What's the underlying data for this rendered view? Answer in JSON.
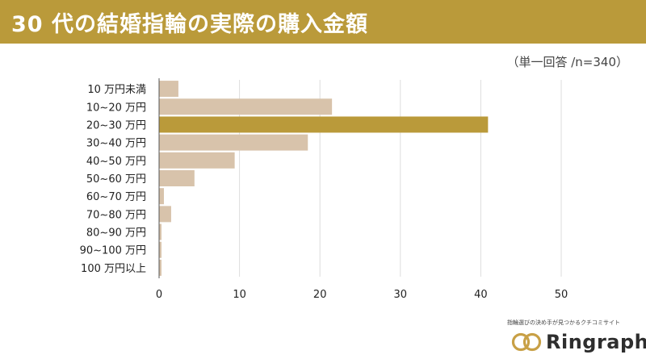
{
  "header": {
    "title": "30 代の結婚指輪の実際の購入金額",
    "subtitle": "（単一回答 /n=340）"
  },
  "chart_data": {
    "type": "bar",
    "orientation": "horizontal",
    "categories": [
      "10 万円未満",
      "10~20 万円",
      "20~30 万円",
      "30~40 万円",
      "40~50 万円",
      "50~60 万円",
      "60~70 万円",
      "70~80 万円",
      "80~90 万円",
      "90~100 万円",
      "100 万円以上"
    ],
    "values": [
      2.4,
      21.5,
      40.9,
      18.5,
      9.4,
      4.4,
      0.6,
      1.5,
      0.3,
      0.3,
      0.3
    ],
    "highlight_index": 2,
    "xlim": [
      0,
      50
    ],
    "xticks": [
      "0",
      "10",
      "20",
      "30",
      "40",
      "50"
    ],
    "grid": true,
    "colors": {
      "bar": "#d8c3ab",
      "highlight": "#ba9a3a",
      "grid": "#dddddd",
      "axis": "#555555"
    }
  },
  "footer": {
    "tagline": "指輪選びの決め手が見つかるクチコミサイト",
    "brand_name": "Ringraph",
    "brand_color": "#c8a046"
  }
}
